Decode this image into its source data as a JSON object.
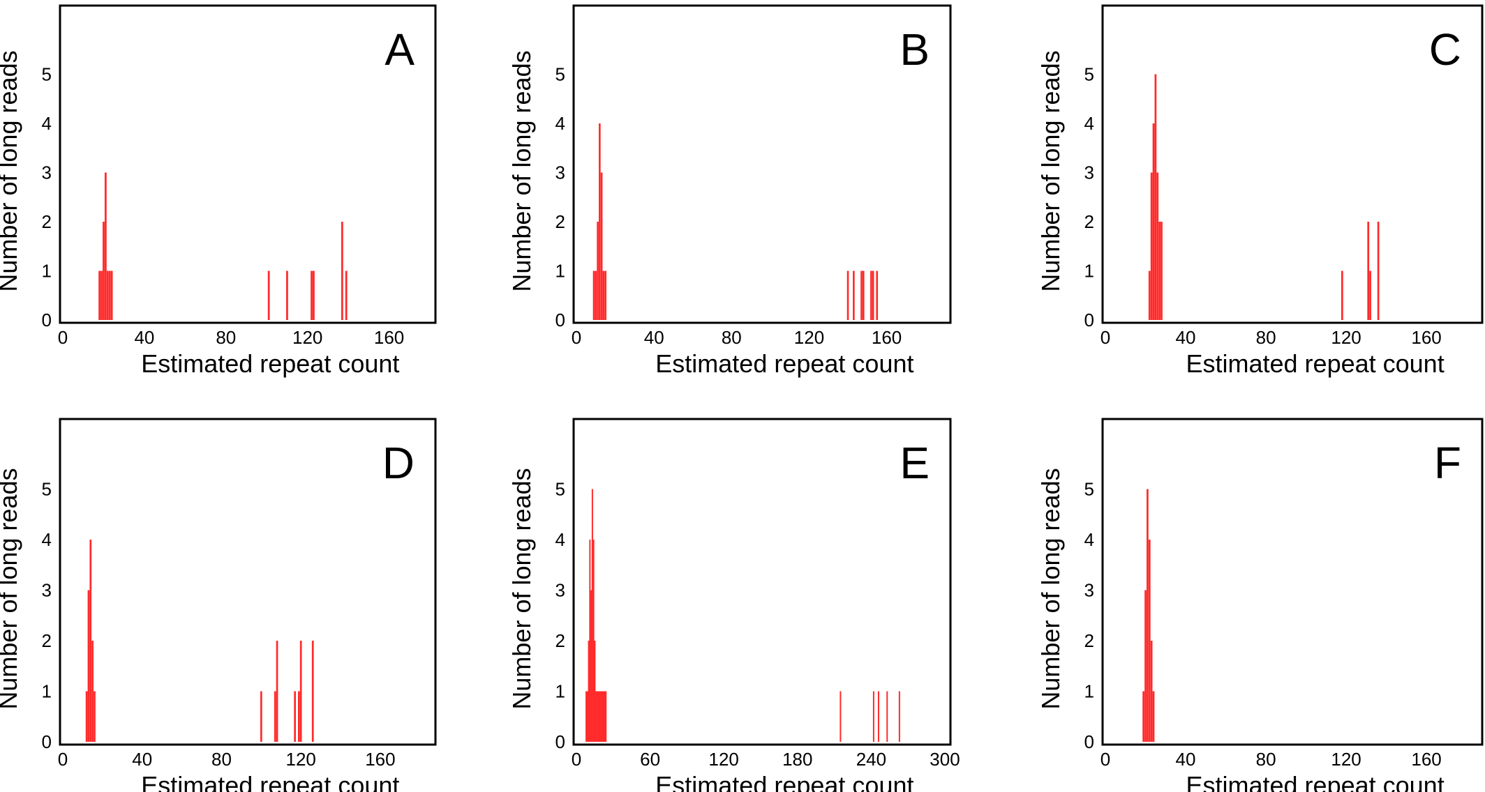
{
  "colors": {
    "bar": "#ff2a2a",
    "axis": "#000000"
  },
  "chart_data": [
    {
      "type": "bar",
      "panel_label": "A",
      "xlabel": "Estimated repeat count",
      "ylabel": "Number of long reads",
      "xlim": [
        0,
        180
      ],
      "ylim": [
        0,
        6
      ],
      "xticks": [
        0,
        40,
        80,
        120,
        160
      ],
      "yticks": [
        0,
        1,
        2,
        3,
        4,
        5
      ],
      "grid": false,
      "legend": "none",
      "bars": [
        {
          "x": 18,
          "y": 1
        },
        {
          "x": 19,
          "y": 1
        },
        {
          "x": 20,
          "y": 2
        },
        {
          "x": 21,
          "y": 3
        },
        {
          "x": 22,
          "y": 1
        },
        {
          "x": 23,
          "y": 1
        },
        {
          "x": 24,
          "y": 1
        },
        {
          "x": 101,
          "y": 1
        },
        {
          "x": 110,
          "y": 1
        },
        {
          "x": 122,
          "y": 1
        },
        {
          "x": 123,
          "y": 1
        },
        {
          "x": 137,
          "y": 2
        },
        {
          "x": 139,
          "y": 1
        }
      ]
    },
    {
      "type": "bar",
      "panel_label": "B",
      "xlabel": "Estimated repeat count",
      "ylabel": "Number of long reads",
      "xlim": [
        0,
        190
      ],
      "ylim": [
        0,
        6
      ],
      "xticks": [
        0,
        40,
        80,
        120,
        160
      ],
      "yticks": [
        0,
        1,
        2,
        3,
        4,
        5
      ],
      "grid": false,
      "legend": "none",
      "bars": [
        {
          "x": 9,
          "y": 1
        },
        {
          "x": 10,
          "y": 1
        },
        {
          "x": 11,
          "y": 2
        },
        {
          "x": 12,
          "y": 4
        },
        {
          "x": 13,
          "y": 3
        },
        {
          "x": 14,
          "y": 1
        },
        {
          "x": 15,
          "y": 1
        },
        {
          "x": 140,
          "y": 1
        },
        {
          "x": 143,
          "y": 1
        },
        {
          "x": 147,
          "y": 1
        },
        {
          "x": 148,
          "y": 1
        },
        {
          "x": 152,
          "y": 1
        },
        {
          "x": 153,
          "y": 1
        },
        {
          "x": 155,
          "y": 1
        }
      ]
    },
    {
      "type": "bar",
      "panel_label": "C",
      "xlabel": "Estimated repeat count",
      "ylabel": "Number of long reads",
      "xlim": [
        0,
        185
      ],
      "ylim": [
        0,
        6
      ],
      "xticks": [
        0,
        40,
        80,
        120,
        160
      ],
      "yticks": [
        0,
        1,
        2,
        3,
        4,
        5
      ],
      "grid": false,
      "legend": "none",
      "bars": [
        {
          "x": 22,
          "y": 1
        },
        {
          "x": 23,
          "y": 3
        },
        {
          "x": 24,
          "y": 4
        },
        {
          "x": 25,
          "y": 5
        },
        {
          "x": 26,
          "y": 3
        },
        {
          "x": 27,
          "y": 2
        },
        {
          "x": 28,
          "y": 2
        },
        {
          "x": 118,
          "y": 1
        },
        {
          "x": 131,
          "y": 2
        },
        {
          "x": 132,
          "y": 1
        },
        {
          "x": 136,
          "y": 2
        }
      ]
    },
    {
      "type": "bar",
      "panel_label": "D",
      "xlabel": "Estimated repeat count",
      "ylabel": "Number of long reads",
      "xlim": [
        0,
        185
      ],
      "ylim": [
        0,
        6
      ],
      "xticks": [
        0,
        40,
        80,
        120,
        160
      ],
      "yticks": [
        0,
        1,
        2,
        3,
        4,
        5
      ],
      "grid": false,
      "legend": "none",
      "bars": [
        {
          "x": 12,
          "y": 1
        },
        {
          "x": 13,
          "y": 3
        },
        {
          "x": 14,
          "y": 4
        },
        {
          "x": 15,
          "y": 2
        },
        {
          "x": 16,
          "y": 1
        },
        {
          "x": 100,
          "y": 1
        },
        {
          "x": 107,
          "y": 1
        },
        {
          "x": 108,
          "y": 2
        },
        {
          "x": 117,
          "y": 1
        },
        {
          "x": 119,
          "y": 1
        },
        {
          "x": 120,
          "y": 2
        },
        {
          "x": 126,
          "y": 2
        }
      ]
    },
    {
      "type": "bar",
      "panel_label": "E",
      "xlabel": "Estimated repeat count",
      "ylabel": "Number of long reads",
      "xlim": [
        0,
        300
      ],
      "ylim": [
        0,
        6
      ],
      "xticks": [
        0,
        60,
        120,
        180,
        240,
        300
      ],
      "yticks": [
        0,
        1,
        2,
        3,
        4,
        5
      ],
      "grid": false,
      "legend": "none",
      "bars": [
        {
          "x": 8,
          "y": 1
        },
        {
          "x": 9,
          "y": 1
        },
        {
          "x": 10,
          "y": 2
        },
        {
          "x": 11,
          "y": 4
        },
        {
          "x": 12,
          "y": 3
        },
        {
          "x": 13,
          "y": 5
        },
        {
          "x": 14,
          "y": 4
        },
        {
          "x": 15,
          "y": 2
        },
        {
          "x": 16,
          "y": 1
        },
        {
          "x": 17,
          "y": 1
        },
        {
          "x": 18,
          "y": 1
        },
        {
          "x": 19,
          "y": 1
        },
        {
          "x": 20,
          "y": 1
        },
        {
          "x": 21,
          "y": 1
        },
        {
          "x": 22,
          "y": 1
        },
        {
          "x": 23,
          "y": 1
        },
        {
          "x": 24,
          "y": 1
        },
        {
          "x": 215,
          "y": 1
        },
        {
          "x": 242,
          "y": 1
        },
        {
          "x": 246,
          "y": 1
        },
        {
          "x": 253,
          "y": 1
        },
        {
          "x": 263,
          "y": 1
        }
      ]
    },
    {
      "type": "bar",
      "panel_label": "F",
      "xlabel": "Estimated repeat count",
      "ylabel": "Number of long reads",
      "xlim": [
        0,
        185
      ],
      "ylim": [
        0,
        6
      ],
      "xticks": [
        0,
        40,
        80,
        120,
        160
      ],
      "yticks": [
        0,
        1,
        2,
        3,
        4,
        5
      ],
      "grid": false,
      "legend": "none",
      "bars": [
        {
          "x": 19,
          "y": 1
        },
        {
          "x": 20,
          "y": 3
        },
        {
          "x": 21,
          "y": 5
        },
        {
          "x": 22,
          "y": 4
        },
        {
          "x": 23,
          "y": 2
        },
        {
          "x": 24,
          "y": 1
        }
      ]
    }
  ]
}
